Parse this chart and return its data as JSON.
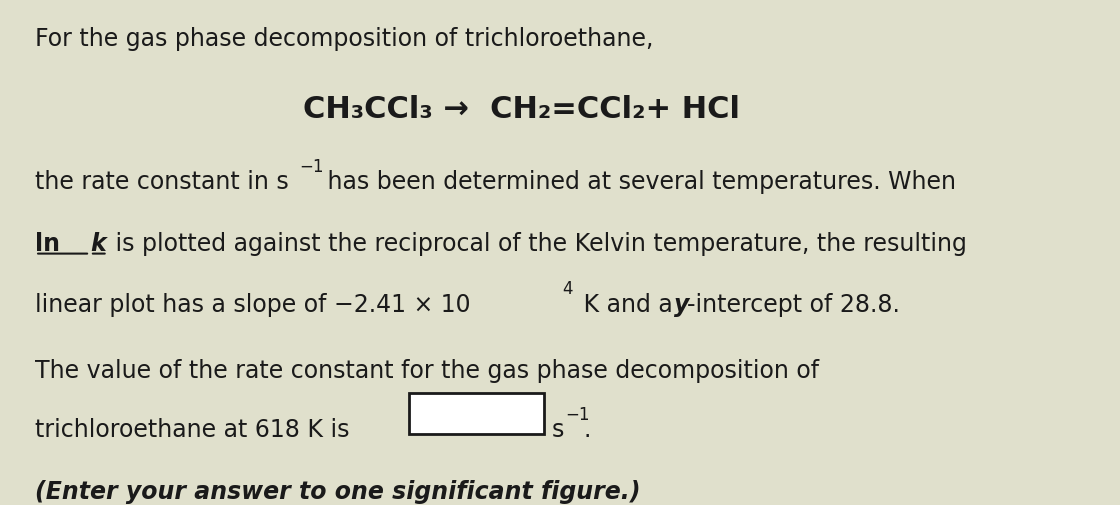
{
  "background_color": "#e0e0cc",
  "title_line": "For the gas phase decomposition of trichloroethane,",
  "reaction_line": "CH₃CCl₃ →  CH₂=CCl₂+ HCl",
  "body_line1_a": "the rate constant in s",
  "body_line1_super": "−1",
  "body_line1_b": " has been determined at several temperatures. When",
  "body_line2_ln": "ln ",
  "body_line2_k": "k",
  "body_line2_rest": " is plotted against the reciprocal of the Kelvin temperature, the resulting",
  "body_line3_a": "linear plot has a slope of −2.41 × 10",
  "body_line3_super": "4",
  "body_line3_b": " K and a ",
  "body_line3_y": "y",
  "body_line3_c": "-intercept of 28.8.",
  "answer_line1": "The value of the rate constant for the gas phase decomposition of",
  "answer_line2_pre": "trichloroethane at 618 K is",
  "answer_s": "s",
  "answer_super": "−1",
  "answer_dot": ".",
  "italic_line": "(Enter your answer to one significant figure.)",
  "font_size_body": 17,
  "font_size_reaction": 22,
  "font_size_super": 12,
  "font_size_italic": 17,
  "text_color": "#1a1a1a",
  "box_edge_color": "#1a1a1a",
  "box_face_color": "#ffffff"
}
